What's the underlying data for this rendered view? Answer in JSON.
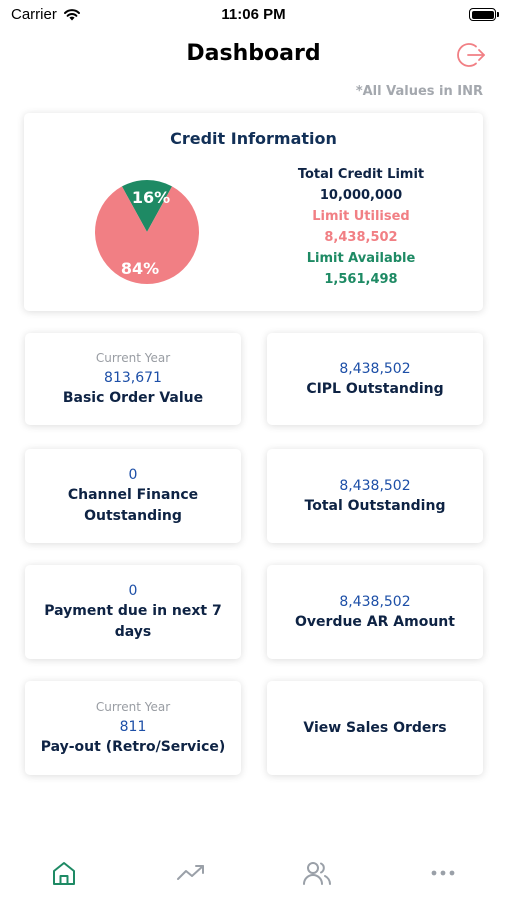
{
  "status_bar": {
    "carrier": "Carrier",
    "time": "11:06 PM"
  },
  "header": {
    "title": "Dashboard",
    "logout_icon": "logout-icon",
    "note": "*All Values in INR"
  },
  "credit": {
    "title": "Credit Information",
    "total_label": "Total Credit Limit",
    "total_value": "10,000,000",
    "utilised_label": "Limit Utilised",
    "utilised_value": "8,438,502",
    "available_label": "Limit Available",
    "available_value": "1,561,498",
    "chart_data": {
      "type": "pie",
      "categories": [
        "Limit Available",
        "Limit Utilised"
      ],
      "values": [
        16,
        84
      ],
      "labels": [
        "16%",
        "84%"
      ],
      "colors": [
        "#1e8a64",
        "#f17f84"
      ]
    }
  },
  "tiles": {
    "basic_order": {
      "sub": "Current Year",
      "value": "813,671",
      "label": "Basic Order Value"
    },
    "cipl": {
      "value": "8,438,502",
      "label": "CIPL Outstanding"
    },
    "channel_finance": {
      "value": "0",
      "label_line1": "Channel Finance",
      "label_line2": "Outstanding"
    },
    "total_outstanding": {
      "value": "8,438,502",
      "label": "Total Outstanding"
    },
    "payment_due": {
      "value": "0",
      "label": "Payment due in next 7 days"
    },
    "overdue_ar": {
      "value": "8,438,502",
      "label": "Overdue AR Amount"
    },
    "payout": {
      "sub": "Current Year",
      "value": "811",
      "label": "Pay-out (Retro/Service)"
    },
    "sales_orders": {
      "label": "View Sales Orders"
    }
  },
  "tab_bar": {
    "active_color": "#1e8a64",
    "items": [
      "home-icon",
      "trend-icon",
      "users-icon",
      "more-icon"
    ]
  }
}
